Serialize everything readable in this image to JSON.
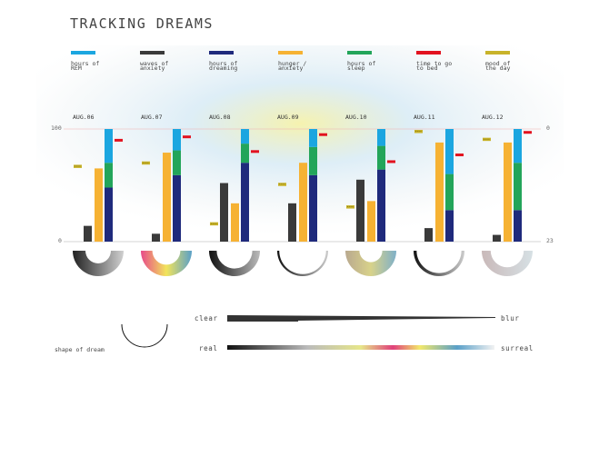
{
  "title": "TRACKING DREAMS",
  "legend": [
    {
      "label": "hours of REM",
      "color": "#1ba6e0"
    },
    {
      "label": "waves of anxiety",
      "color": "#3a3a3a"
    },
    {
      "label": "hours of dreaming",
      "color": "#1f2a7c"
    },
    {
      "label": "hunger / anxiety",
      "color": "#f6b233"
    },
    {
      "label": "hours of sleep",
      "color": "#23a55a"
    },
    {
      "label": "time to go to bed",
      "color": "#e2121f"
    },
    {
      "label": "mood of the day",
      "color": "#c8b32a"
    }
  ],
  "axis": {
    "left_top": "100",
    "left_bottom": "0",
    "right_top": "0",
    "right_bottom": "23"
  },
  "chart_data": {
    "type": "bar",
    "categories": [
      "AUG.06",
      "AUG.07",
      "AUG.08",
      "AUG.09",
      "AUG.10",
      "AUG.11",
      "AUG.12"
    ],
    "ylim": [
      0,
      100
    ],
    "series": [
      {
        "name": "waves of anxiety",
        "color": "#3a3a3a",
        "values": [
          14,
          7,
          52,
          34,
          55,
          12,
          6
        ]
      },
      {
        "name": "hunger / anxiety",
        "color": "#f6b233",
        "values": [
          65,
          79,
          34,
          70,
          36,
          88,
          88
        ]
      },
      {
        "name": "hours of dreaming",
        "color": "#1f2a7c",
        "values": [
          48,
          59,
          70,
          59,
          64,
          28,
          28
        ]
      },
      {
        "name": "hours of sleep",
        "color": "#23a55a",
        "values": [
          22,
          22,
          17,
          25,
          21,
          32,
          42
        ]
      },
      {
        "name": "hours of REM",
        "color": "#1ba6e0",
        "values": [
          30,
          19,
          13,
          16,
          15,
          40,
          30
        ]
      },
      {
        "name": "time to go to bed",
        "color": "#e2121f",
        "values": [
          90,
          93,
          80,
          95,
          71,
          77,
          97
        ]
      },
      {
        "name": "mood of the day",
        "color": "#c8b32a",
        "values": [
          67,
          70,
          16,
          51,
          31,
          98,
          91
        ]
      }
    ]
  },
  "dream_arcs": [
    {
      "gradient": [
        "#222222",
        "#d0d0d0"
      ],
      "thickness": 0.5
    },
    {
      "gradient": [
        "#e84a8a",
        "#f2e45b",
        "#5aa0c8"
      ],
      "thickness": 0.45
    },
    {
      "gradient": [
        "#111111",
        "#bbbbbb"
      ],
      "thickness": 0.3
    },
    {
      "gradient": [
        "#111111",
        "#cccccc"
      ],
      "thickness": 0.08
    },
    {
      "gradient": [
        "#b9a98f",
        "#d8d28a",
        "#7fb0c8"
      ],
      "thickness": 0.55
    },
    {
      "gradient": [
        "#111111",
        "#cccccc"
      ],
      "thickness": 0.12
    },
    {
      "gradient": [
        "#c9b9b9",
        "#d6e0e4"
      ],
      "thickness": 0.35
    }
  ],
  "key": {
    "shape_label": "shape of dream",
    "clear": "clear",
    "blur": "blur",
    "real": "real",
    "surreal": "surreal"
  }
}
